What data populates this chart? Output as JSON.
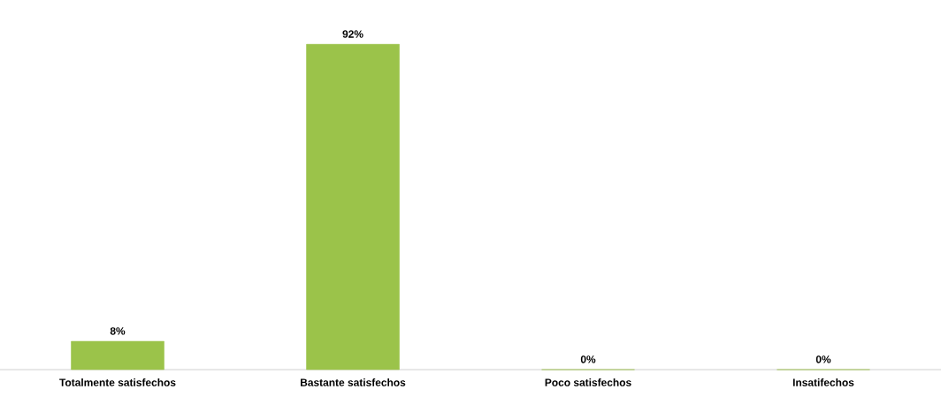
{
  "chart_data": {
    "type": "bar",
    "categories": [
      "Totalmente satisfechos",
      "Bastante satisfechos",
      "Poco satisfechos",
      "Insatifechos"
    ],
    "values": [
      8,
      92,
      0,
      0
    ],
    "value_labels": [
      "8%",
      "92%",
      "0%",
      "0%"
    ],
    "color": "#9bc34a"
  }
}
